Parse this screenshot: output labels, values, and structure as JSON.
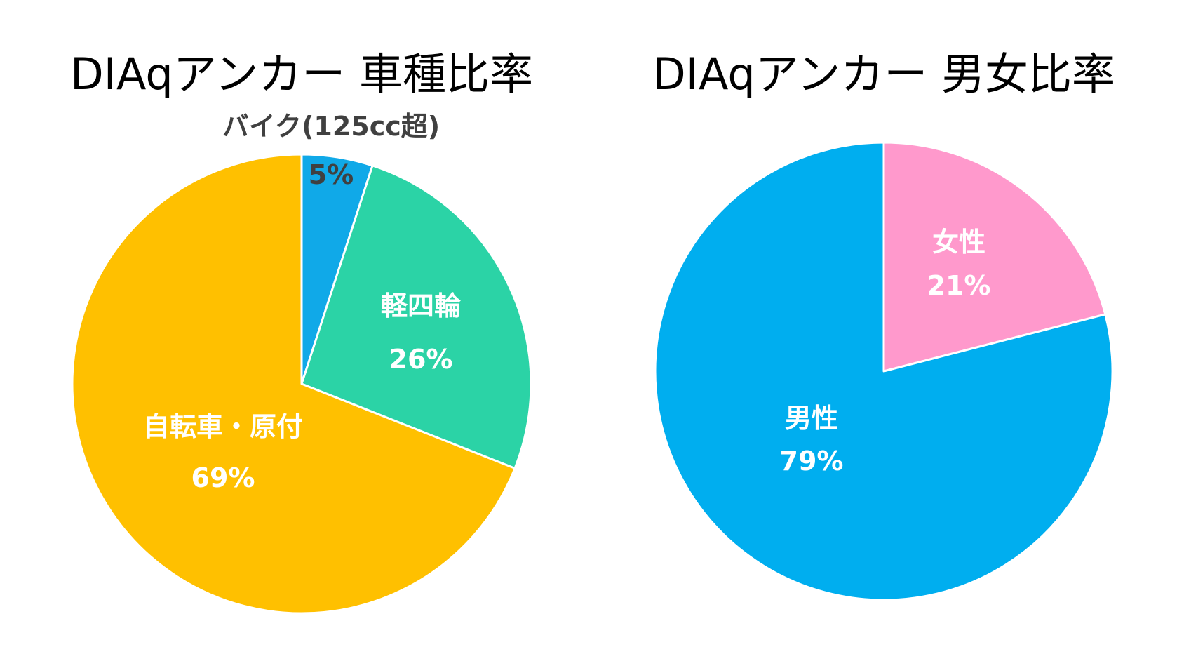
{
  "chart_data": [
    {
      "type": "pie",
      "title": "DIAqアンカー 車種比率",
      "start": "12 o'clock, clockwise",
      "slices": [
        {
          "label": "バイク(125cc超)",
          "value": 5,
          "value_label": "5%",
          "color": "#10A9E8",
          "label_color": "#404040",
          "label_placement": "outside"
        },
        {
          "label": "軽四輪",
          "value": 26,
          "value_label": "26%",
          "color": "#2BD3A6",
          "label_color": "#ffffff",
          "label_placement": "inside"
        },
        {
          "label": "自転車・原付",
          "value": 69,
          "value_label": "69%",
          "color": "#FFC000",
          "label_color": "#ffffff",
          "label_placement": "inside"
        }
      ]
    },
    {
      "type": "pie",
      "title": "DIAqアンカー 男女比率",
      "start": "12 o'clock, clockwise",
      "slices": [
        {
          "label": "女性",
          "value": 21,
          "value_label": "21%",
          "color": "#FF99CC",
          "label_color": "#ffffff",
          "label_placement": "inside"
        },
        {
          "label": "男性",
          "value": 79,
          "value_label": "79%",
          "color": "#00AEEF",
          "label_color": "#ffffff",
          "label_placement": "inside"
        }
      ]
    }
  ]
}
